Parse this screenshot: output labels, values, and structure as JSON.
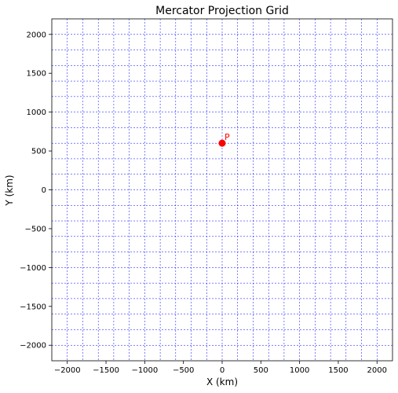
{
  "chart_data": {
    "type": "scatter",
    "title": "Mercator Projection Grid",
    "xlabel": "X (km)",
    "ylabel": "Y (km)",
    "xlim": [
      -2200,
      2200
    ],
    "ylim": [
      -2200,
      2200
    ],
    "xticks": [
      -2000,
      -1500,
      -1000,
      -500,
      0,
      500,
      1000,
      1500,
      2000
    ],
    "yticks": [
      -2000,
      -1500,
      -1000,
      -500,
      0,
      500,
      1000,
      1500,
      2000
    ],
    "xtick_labels": [
      "−2000",
      "−1500",
      "−1000",
      "−500",
      "0",
      "500",
      "1000",
      "1500",
      "2000"
    ],
    "ytick_labels": [
      "−2000",
      "−1500",
      "−1000",
      "−500",
      "0",
      "500",
      "1000",
      "1500",
      "2000"
    ],
    "grid": true,
    "grid_style": "dashed",
    "grid_color": "#0000ff",
    "vertical_grid_x": [
      -2000,
      -1800,
      -1600,
      -1400,
      -1200,
      -1000,
      -800,
      -600,
      -400,
      -200,
      0,
      200,
      400,
      600,
      800,
      1000,
      1200,
      1400,
      1600,
      1800,
      2000
    ],
    "horizontal_grid_y": [
      -2000,
      -1800,
      -1600,
      -1400,
      -1200,
      -1000,
      -800,
      -600,
      -400,
      -200,
      0,
      200,
      400,
      600,
      800,
      1000,
      1200,
      1400,
      1600,
      1800,
      2000
    ],
    "points": [
      {
        "label": "P",
        "x": 0,
        "y": 600,
        "color": "#ff0000"
      }
    ]
  }
}
